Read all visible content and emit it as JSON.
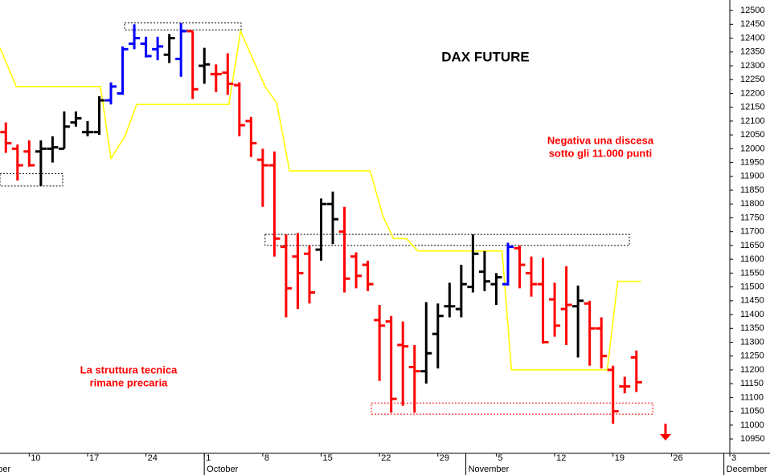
{
  "chart_data": {
    "type": "ohlc",
    "title": "DAX FUTURE",
    "annotations": [
      [
        "Negativa una discesa",
        "sotto gli 11.000 punti"
      ],
      [
        "La struttura tecnica",
        "rimane precaria"
      ]
    ],
    "annotation_color": "#ff0000",
    "x": [
      0,
      1,
      2,
      3,
      4,
      5,
      6,
      7,
      8,
      9,
      10,
      11,
      12,
      13,
      14,
      15,
      16,
      17,
      18,
      19,
      20,
      21,
      22,
      23,
      24,
      25,
      26,
      27,
      28,
      29,
      30,
      31,
      32,
      33,
      34,
      35,
      36,
      37,
      38,
      39,
      40,
      41,
      42,
      43,
      44,
      45,
      46,
      47,
      48,
      49,
      50,
      51,
      52,
      53,
      54
    ],
    "open": [
      12060,
      12000,
      11990,
      11990,
      12000,
      12000,
      12095,
      12060,
      12060,
      12175,
      12200,
      12380,
      12380,
      12360,
      12340,
      12325,
      12425,
      12300,
      12270,
      12275,
      12230,
      12100,
      11960,
      11940,
      11645,
      11610,
      11620,
      11635,
      11800,
      11700,
      11610,
      11580,
      11380,
      11375,
      11290,
      11210,
      11195,
      11330,
      11430,
      11420,
      11500,
      11555,
      11510,
      11510,
      11640,
      11550,
      11510,
      11455,
      11420,
      11430,
      11440,
      11350,
      11200,
      11140,
      11245
    ],
    "high": [
      12095,
      12015,
      12030,
      12030,
      12045,
      12135,
      12135,
      12100,
      12190,
      12240,
      12370,
      12450,
      12405,
      12405,
      12415,
      12455,
      12425,
      12365,
      12305,
      12345,
      12240,
      12115,
      12000,
      11990,
      11690,
      11695,
      11650,
      11820,
      11845,
      11790,
      11625,
      11595,
      11435,
      11395,
      11375,
      11290,
      11445,
      11440,
      11515,
      11580,
      11690,
      11630,
      11550,
      11660,
      11650,
      11610,
      11605,
      11515,
      11575,
      11505,
      11450,
      11390,
      11215,
      11175,
      11270
    ],
    "low": [
      11985,
      11885,
      11935,
      11865,
      11950,
      12000,
      12080,
      12045,
      12050,
      12160,
      12195,
      12360,
      12330,
      12320,
      12310,
      12260,
      12180,
      12235,
      12205,
      12195,
      12045,
      11970,
      11790,
      11610,
      11390,
      11420,
      11440,
      11595,
      11655,
      11480,
      11495,
      11485,
      11160,
      11045,
      11070,
      11045,
      11150,
      11205,
      11390,
      11390,
      11480,
      11485,
      11435,
      11505,
      11495,
      11465,
      11295,
      11320,
      11290,
      11245,
      11215,
      11205,
      11005,
      11115,
      11120
    ],
    "close": [
      12020,
      11940,
      11940,
      12000,
      12005,
      12080,
      12110,
      12060,
      12175,
      12225,
      12360,
      12400,
      12335,
      12370,
      12400,
      12425,
      12215,
      12305,
      12270,
      12235,
      12085,
      12020,
      11940,
      11675,
      11495,
      11550,
      11480,
      11800,
      11745,
      11530,
      11540,
      11510,
      11360,
      11095,
      11285,
      11195,
      11260,
      11395,
      11430,
      11510,
      11620,
      11520,
      11535,
      11645,
      11580,
      11510,
      11300,
      11360,
      11435,
      11450,
      11350,
      11250,
      11050,
      11140,
      11155
    ],
    "colors": [
      "#ff0000",
      "#ff0000",
      "#ff0000",
      "#000000",
      "#000000",
      "#000000",
      "#000000",
      "#000000",
      "#000000",
      "#0000ff",
      "#0000ff",
      "#0000ff",
      "#0000ff",
      "#0000ff",
      "#000000",
      "#0000ff",
      "#ff0000",
      "#000000",
      "#ff0000",
      "#ff0000",
      "#ff0000",
      "#ff0000",
      "#ff0000",
      "#ff0000",
      "#ff0000",
      "#ff0000",
      "#ff0000",
      "#000000",
      "#000000",
      "#ff0000",
      "#ff0000",
      "#ff0000",
      "#ff0000",
      "#ff0000",
      "#ff0000",
      "#ff0000",
      "#000000",
      "#000000",
      "#000000",
      "#000000",
      "#000000",
      "#000000",
      "#000000",
      "#0000ff",
      "#ff0000",
      "#ff0000",
      "#ff0000",
      "#ff0000",
      "#ff0000",
      "#000000",
      "#ff0000",
      "#ff0000",
      "#ff0000",
      "#ff0000",
      "#ff0000"
    ],
    "stop_line": {
      "color": "#ffff00",
      "x": [
        -0.5,
        0.88,
        8.1,
        9.0,
        10.2,
        11.2,
        19.1,
        20.1,
        22.2,
        23.2,
        24.3,
        31.2,
        32.3,
        33.2,
        34.3,
        35.3,
        42.5,
        43.3,
        51.5,
        52.4,
        54.4
      ],
      "values": [
        12365,
        12225,
        12225,
        11965,
        12045,
        12160,
        12160,
        12425,
        12225,
        12165,
        11920,
        11920,
        11755,
        11675,
        11675,
        11630,
        11630,
        11200,
        11200,
        11520,
        11520
      ]
    },
    "zones": [
      {
        "x": [
          -0.5,
          4.87
        ],
        "y": [
          11865,
          11910
        ],
        "color": "#000000"
      },
      {
        "x": [
          10.17,
          20.15
        ],
        "y": [
          12430,
          12455
        ],
        "color": "#000000"
      },
      {
        "x": [
          22.2,
          53.4
        ],
        "y": [
          11650,
          11690
        ],
        "color": "#000000"
      },
      {
        "x": [
          31.3,
          55.4
        ],
        "y": [
          11040,
          11080
        ],
        "color": "#ff0000"
      }
    ],
    "xlim": [
      -0.5,
      62
    ],
    "xticks": [
      {
        "value": 2,
        "label": "10"
      },
      {
        "value": 7,
        "label": "17"
      },
      {
        "value": 12,
        "label": "24"
      },
      {
        "value": 17,
        "label": "1"
      },
      {
        "value": 22,
        "label": "8"
      },
      {
        "value": 27,
        "label": "15"
      },
      {
        "value": 32,
        "label": "22"
      },
      {
        "value": 37,
        "label": "29"
      },
      {
        "value": 42,
        "label": "5"
      },
      {
        "value": 47,
        "label": "12"
      },
      {
        "value": 52,
        "label": "19"
      },
      {
        "value": 57,
        "label": "26"
      },
      {
        "value": 62,
        "label": "3"
      }
    ],
    "month_labels": [
      {
        "value": -3.3,
        "label": "September"
      },
      {
        "value": 17.2,
        "label": "October"
      },
      {
        "value": 39.6,
        "label": "November"
      },
      {
        "value": 61.7,
        "label": "December"
      }
    ],
    "ylim": [
      10898,
      12538
    ],
    "yticks": [
      10950,
      11000,
      11050,
      11100,
      11150,
      11200,
      11250,
      11300,
      11350,
      11400,
      11450,
      11500,
      11550,
      11600,
      11650,
      11700,
      11750,
      11800,
      11850,
      11900,
      11950,
      12000,
      12050,
      12100,
      12150,
      12200,
      12250,
      12300,
      12350,
      12400,
      12450,
      12500
    ]
  }
}
